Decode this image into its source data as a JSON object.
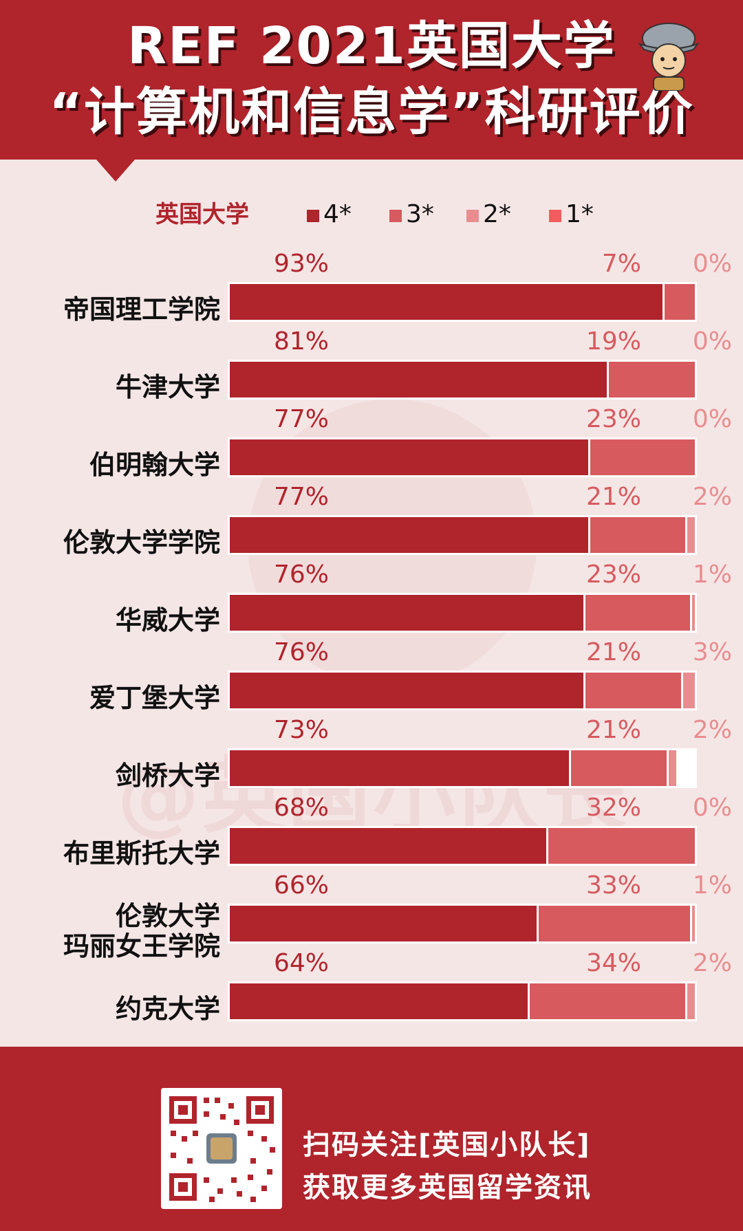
{
  "header": {
    "title_line1": "REF 2021英国大学",
    "title_line2": "“计算机和信息学”科研评价"
  },
  "legend": {
    "title": "英国大学",
    "items": [
      {
        "label": "4*",
        "color": "#b0242c"
      },
      {
        "label": "3*",
        "color": "#d65a5e"
      },
      {
        "label": "2*",
        "color": "#e88d8f"
      },
      {
        "label": "1*",
        "color": "#f25c5f"
      }
    ]
  },
  "watermark": "@英国小队长",
  "chart_data": {
    "type": "bar",
    "orientation": "horizontal",
    "stacked": true,
    "series_names": [
      "4*",
      "3*",
      "2*",
      "1*"
    ],
    "colors": [
      "#b0242c",
      "#d65a5e",
      "#e88d8f",
      "#f25c5f"
    ],
    "categories": [
      "帝国理工学院",
      "牛津大学",
      "伯明翰大学",
      "伦敦大学学院",
      "华威大学",
      "爱丁堡大学",
      "剑桥大学",
      "布里斯托大学",
      "伦敦大学\n玛丽女王学院",
      "约克大学"
    ],
    "series": [
      {
        "name": "4*",
        "values": [
          93,
          81,
          77,
          77,
          76,
          76,
          73,
          68,
          66,
          64
        ]
      },
      {
        "name": "3*",
        "values": [
          7,
          19,
          23,
          21,
          23,
          21,
          21,
          32,
          33,
          34
        ]
      },
      {
        "name": "2*",
        "values": [
          0,
          0,
          0,
          2,
          1,
          3,
          2,
          0,
          1,
          2
        ]
      },
      {
        "name": "1*",
        "values": [
          0,
          0,
          0,
          0,
          0,
          0,
          0,
          0,
          0,
          0
        ]
      }
    ],
    "value_labels": [
      [
        "93%",
        "7%",
        "0%"
      ],
      [
        "81%",
        "19%",
        "0%"
      ],
      [
        "77%",
        "23%",
        "0%"
      ],
      [
        "77%",
        "21%",
        "2%"
      ],
      [
        "76%",
        "23%",
        "1%"
      ],
      [
        "76%",
        "21%",
        "3%"
      ],
      [
        "73%",
        "21%",
        "2%"
      ],
      [
        "68%",
        "32%",
        "0%"
      ],
      [
        "66%",
        "33%",
        "1%"
      ],
      [
        "64%",
        "34%",
        "2%"
      ]
    ],
    "unit": "%",
    "xlim": [
      0,
      100
    ]
  },
  "footer": {
    "line1": "扫码关注[英国小队长]",
    "line2": "获取更多英国留学资讯"
  }
}
